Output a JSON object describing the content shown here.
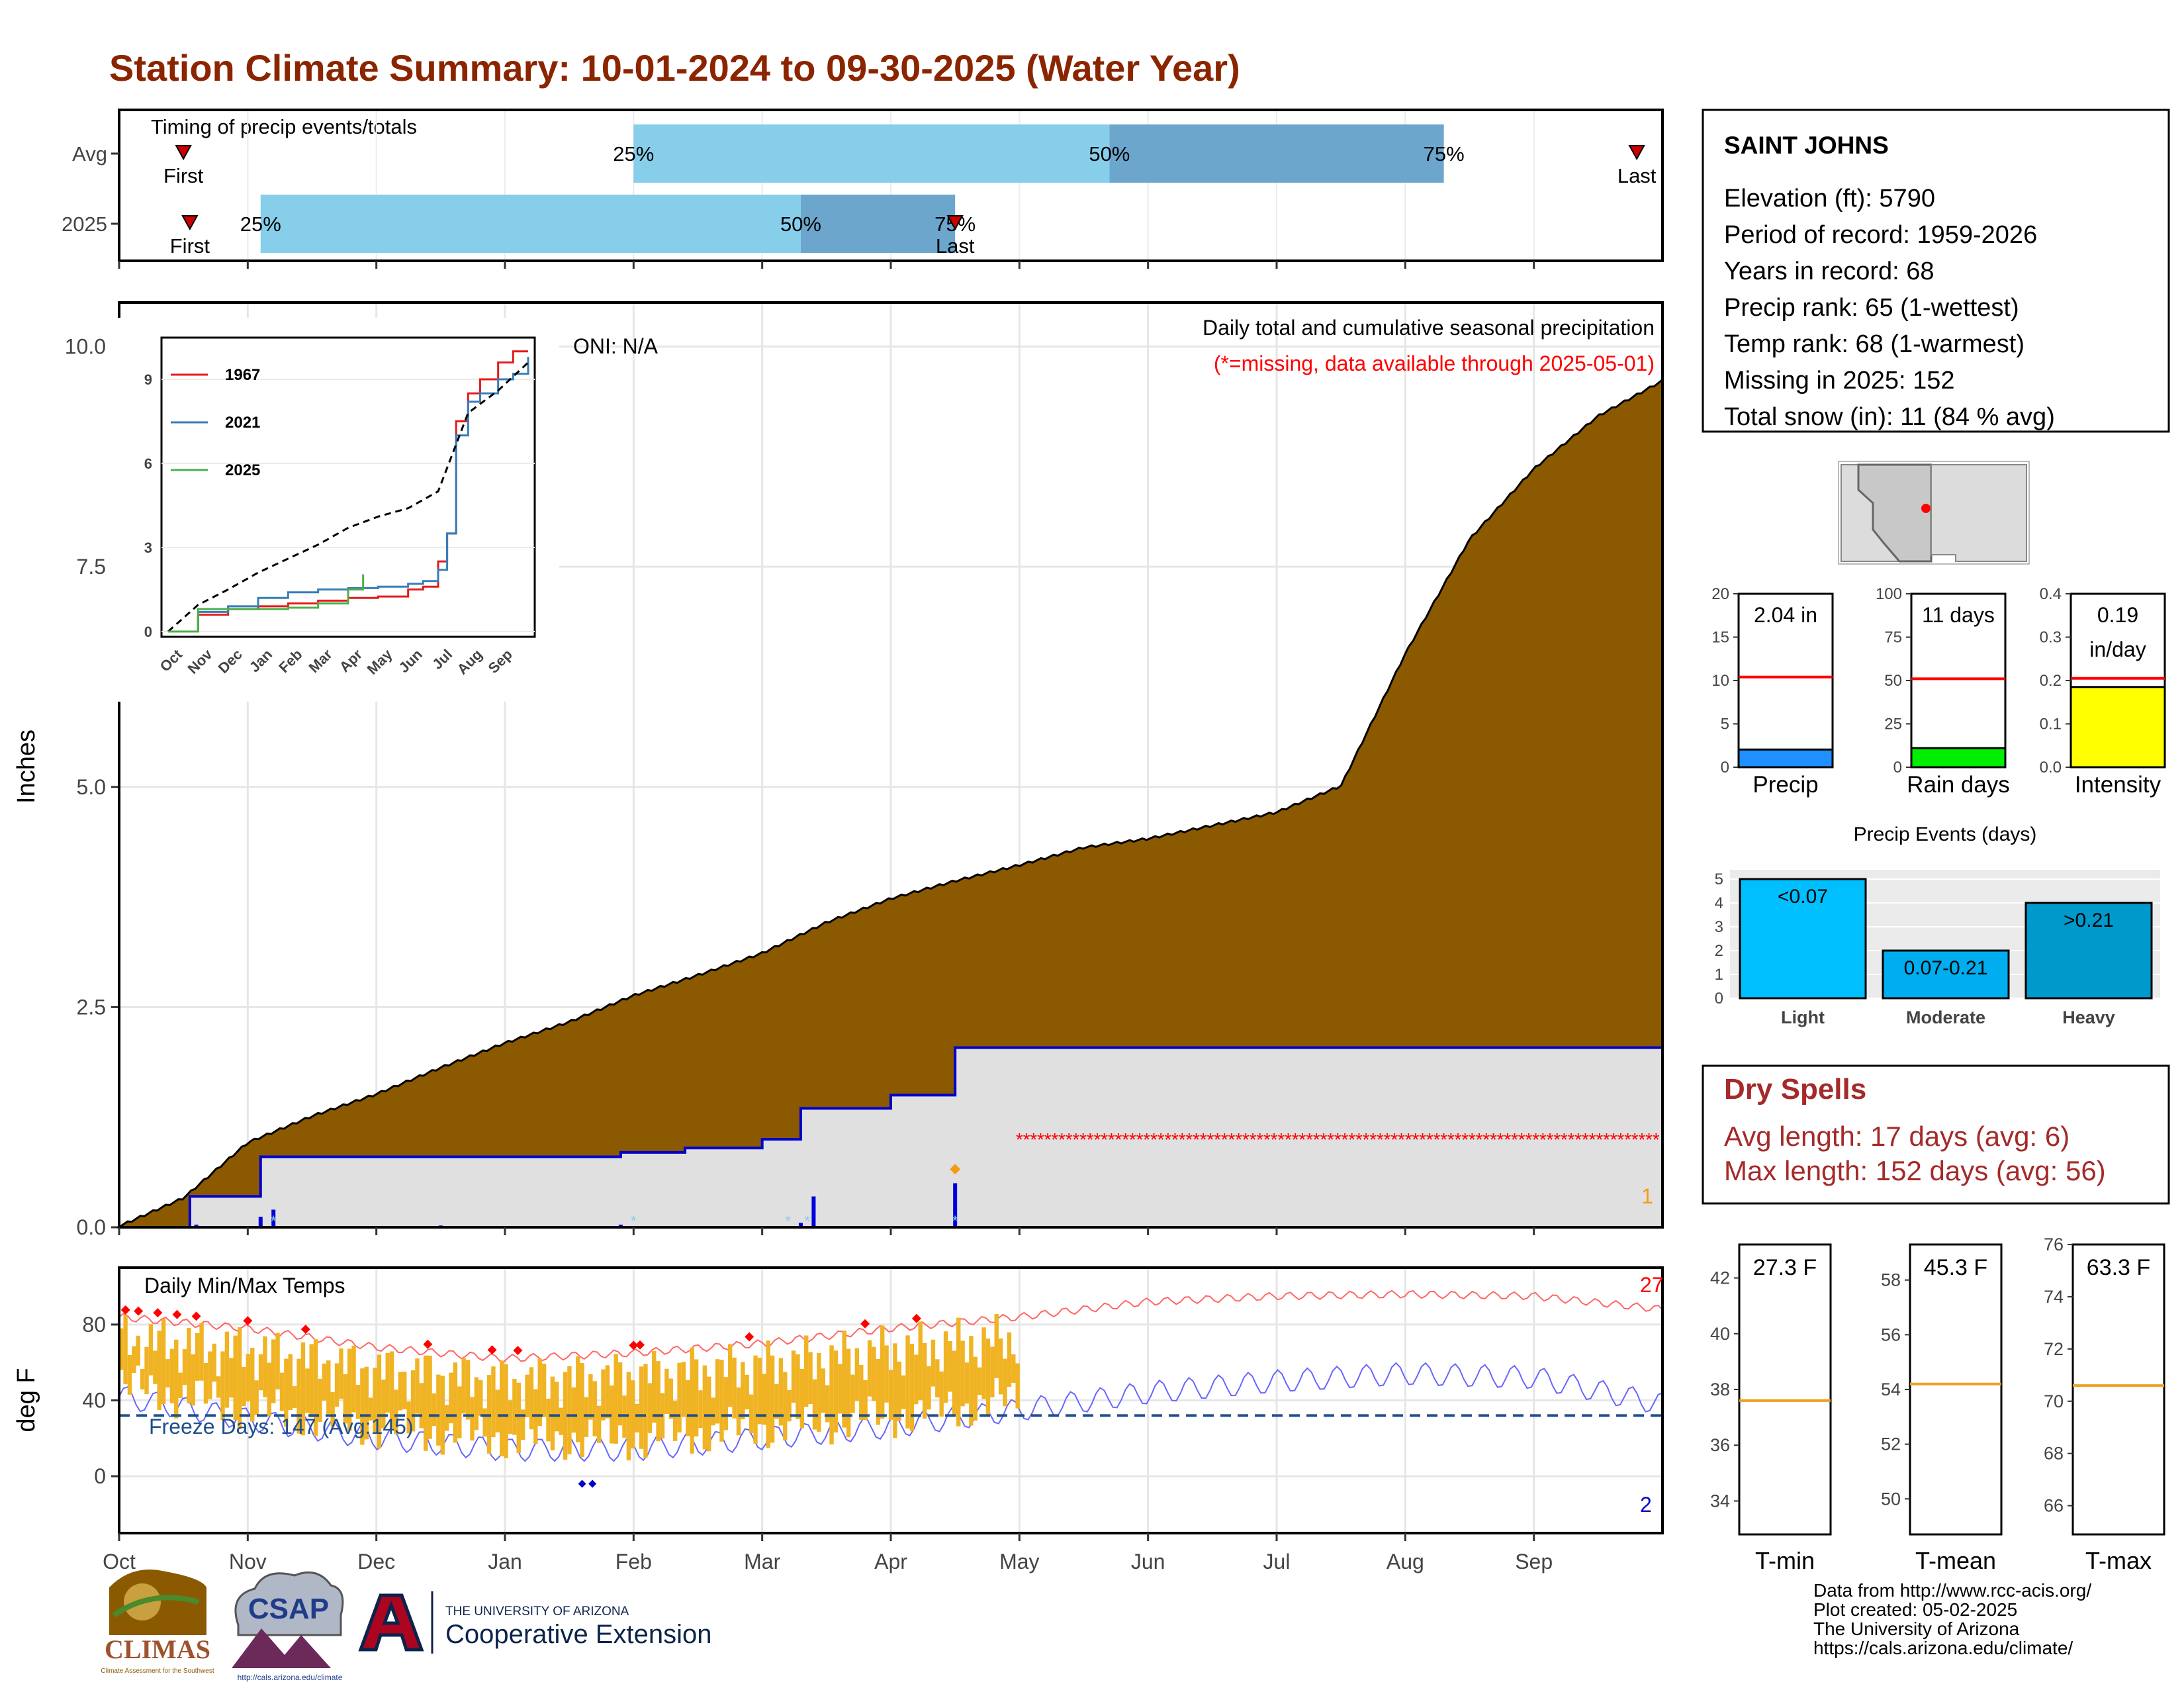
{
  "title": "Station Climate Summary: 10-01-2024 to 09-30-2025 (Water Year)",
  "colors": {
    "title": "#8b2500",
    "cumulative_fill": "#8b5a00",
    "current_area": "#e0e0e0",
    "current_line": "#0000cc",
    "missing": "#ff0000",
    "timing_light": "#87ceeb",
    "timing_dark": "#6ca6cd",
    "temp_bar": "#f0b323",
    "record_high": "#ff0000",
    "record_low": "#0000cc",
    "freeze_line": "#1f4e8c",
    "dry_spells": "#a52a2a",
    "precip_bar": "#1e90ff",
    "rain_days_bar": "#00ee00",
    "intensity_bar": "#ffff00",
    "avg_line": "#ff0000",
    "temp_avg_line": "#f0a020",
    "event_light": "#00bfff",
    "event_moderate": "#00aeef",
    "event_heavy": "#0099cc",
    "inset_1967": "#e41a1c",
    "inset_2021": "#377eb8",
    "inset_2025": "#4daf4a"
  },
  "timing": {
    "label": "Timing of precip events/totals",
    "rows": [
      {
        "label": "Avg",
        "first_month": 0.5,
        "p25": 4.0,
        "p50": 7.7,
        "p75": 10.3,
        "last_month": 11.8,
        "first_label": "First",
        "last_label": "Last",
        "p25_label": "25%",
        "p50_label": "50%",
        "p75_label": "75%"
      },
      {
        "label": "2025",
        "first_month": 0.55,
        "p25": 1.1,
        "p50": 5.3,
        "p75": 6.5,
        "last_month": 6.5,
        "first_label": "First",
        "last_label": "Last",
        "p25_label": "25%",
        "p50_label": "50%",
        "p75_label": "75%"
      }
    ]
  },
  "months": [
    "Oct",
    "Nov",
    "Dec",
    "Jan",
    "Feb",
    "Mar",
    "Apr",
    "May",
    "Jun",
    "Jul",
    "Aug",
    "Sep"
  ],
  "precip_panel": {
    "ylabel": "Inches",
    "yticks": [
      "0.0",
      "2.5",
      "5.0",
      "7.5",
      "10.0"
    ],
    "oni": "ONI: N/A",
    "legend_title": "Daily total and cumulative seasonal precipitation",
    "legend_missing": "(*=missing, data available through 2025-05-01)",
    "corner_count": "1"
  },
  "inset": {
    "series": [
      {
        "name": "1967"
      },
      {
        "name": "2021"
      },
      {
        "name": "2025"
      }
    ],
    "yticks": [
      "0",
      "3",
      "6",
      "9"
    ],
    "months": [
      "Oct",
      "Nov",
      "Dec",
      "Jan",
      "Feb",
      "Mar",
      "Apr",
      "May",
      "Jun",
      "Jul",
      "Aug",
      "Sep"
    ]
  },
  "temp_panel": {
    "ylabel": "deg F",
    "title": "Daily Min/Max Temps",
    "freeze_label": "Freeze Days: 147 (Avg:145)",
    "record_high_count": "27",
    "record_low_count": "2",
    "yticks": [
      "0",
      "40",
      "80"
    ]
  },
  "station": {
    "name": "SAINT JOHNS",
    "lines": [
      "Elevation (ft): 5790",
      "Period of record: 1959-2026",
      "Years in record: 68",
      "Precip rank: 65 (1-wettest)",
      "Temp rank: 68 (1-warmest)",
      "Missing in 2025: 152",
      "Total snow (in): 11 (84 % avg)"
    ]
  },
  "small_charts": [
    {
      "label": "Precip",
      "value_text": "2.04 in",
      "value": 2.04,
      "avg": 10.4,
      "max": 20,
      "yticks": [
        "0",
        "5",
        "10",
        "15",
        "20"
      ]
    },
    {
      "label": "Rain days",
      "value_text": "11 days",
      "value": 11,
      "avg": 51,
      "max": 100,
      "yticks": [
        "0",
        "25",
        "50",
        "75",
        "100"
      ]
    },
    {
      "label": "Intensity",
      "value_text": "0.19 in/day",
      "value_line1": "0.19",
      "value_line2": "in/day",
      "value": 0.185,
      "avg": 0.205,
      "max": 0.4,
      "yticks": [
        "0.0",
        "0.1",
        "0.2",
        "0.3",
        "0.4"
      ]
    }
  ],
  "precip_events": {
    "title": "Precip Events (days)",
    "yticks": [
      "0",
      "1",
      "2",
      "3",
      "4",
      "5"
    ],
    "bars": [
      {
        "category": "Light",
        "label": "<0.07",
        "value": 5
      },
      {
        "category": "Moderate",
        "label": "0.07-0.21",
        "value": 2
      },
      {
        "category": "Heavy",
        "label": ">0.21",
        "value": 4
      }
    ]
  },
  "dry_spells": {
    "title": "Dry Spells",
    "avg_line": "Avg length: 17 days (avg: 6)",
    "max_line": "Max length: 152 days (avg: 56)"
  },
  "temp_charts": [
    {
      "label": "T-min",
      "value_text": "27.3 F",
      "avg": 37.6,
      "min": 32.8,
      "max": 43.2,
      "ticks": [
        34,
        36,
        38,
        40,
        42
      ]
    },
    {
      "label": "T-mean",
      "value_text": "45.3 F",
      "avg": 54.2,
      "min": 48.7,
      "max": 59.3,
      "ticks": [
        50,
        52,
        54,
        56,
        58
      ]
    },
    {
      "label": "T-max",
      "value_text": "63.3 F",
      "avg": 70.6,
      "min": 64.9,
      "max": 76.0,
      "ticks": [
        66,
        68,
        70,
        72,
        74,
        76
      ]
    }
  ],
  "logos": {
    "climas": "CLIMAS",
    "climas_sub": "Climate Assessment for the Southwest",
    "csap": "CSAP",
    "csap_url": "http://cals.arizona.edu/climate",
    "ua_small": "THE UNIVERSITY OF ARIZONA",
    "ua_big": "Cooperative Extension"
  },
  "footer": [
    "Data from http://www.rcc-acis.org/",
    "Plot created: 05-02-2025",
    "The University of Arizona",
    "https://cals.arizona.edu/climate/"
  ],
  "chart_data": [
    {
      "type": "area",
      "title": "Daily total and cumulative seasonal precipitation",
      "ylabel": "Inches",
      "ylim": [
        0,
        10.5
      ],
      "x_unit": "months since Oct 1",
      "series": [
        {
          "name": "Average cumulative",
          "x": [
            0,
            0.5,
            1,
            1.5,
            2,
            2.5,
            3,
            3.5,
            4,
            4.5,
            5,
            5.5,
            6,
            6.5,
            7,
            7.5,
            8,
            8.5,
            9,
            9.5,
            10,
            10.5,
            11,
            11.5,
            12
          ],
          "values": [
            0,
            0.32,
            0.95,
            1.25,
            1.5,
            1.8,
            2.08,
            2.32,
            2.62,
            2.85,
            3.1,
            3.45,
            3.72,
            3.92,
            4.1,
            4.3,
            4.4,
            4.55,
            4.7,
            5.0,
            6.5,
            7.8,
            8.6,
            9.2,
            9.6
          ]
        },
        {
          "name": "2025 cumulative",
          "x": [
            0,
            0.55,
            1.1,
            2.0,
            3.0,
            3.9,
            4.4,
            5.0,
            5.3,
            6.0,
            6.5,
            7.0,
            12
          ],
          "values": [
            0,
            0.35,
            0.8,
            0.8,
            0.8,
            0.85,
            0.9,
            1.0,
            1.35,
            1.5,
            2.04,
            2.04,
            2.04
          ]
        }
      ],
      "missing_from": "2025-05-01",
      "daily_events_month": [
        0.6,
        1.1,
        1.2,
        2.5,
        3.9,
        5.3,
        5.4,
        6.5
      ],
      "daily_events_in": [
        0.03,
        0.12,
        0.2,
        0.02,
        0.03,
        0.05,
        0.35,
        0.5
      ]
    },
    {
      "type": "line",
      "title": "",
      "series": [
        {
          "name": "1967",
          "x": [
            0,
            1,
            2,
            3,
            4,
            5,
            6,
            7,
            8,
            8.5,
            9,
            9.3,
            9.6,
            10,
            10.4,
            11,
            11.5,
            12
          ],
          "values": [
            0,
            0.6,
            0.8,
            0.9,
            1.0,
            1.1,
            1.2,
            1.25,
            1.5,
            1.6,
            2.5,
            3.5,
            7.5,
            8.5,
            9.0,
            9.6,
            10.0,
            10.0
          ]
        },
        {
          "name": "2021",
          "x": [
            0,
            1,
            2,
            3,
            4,
            5,
            6,
            7,
            8,
            8.5,
            9,
            9.3,
            9.6,
            10,
            10.4,
            11,
            11.5,
            12
          ],
          "values": [
            0,
            0.7,
            0.9,
            1.2,
            1.4,
            1.5,
            1.55,
            1.6,
            1.7,
            1.8,
            2.2,
            3.5,
            7.0,
            8.2,
            8.5,
            9.0,
            9.2,
            9.8
          ]
        },
        {
          "name": "Average",
          "x": [
            0,
            1,
            2,
            3,
            4,
            5,
            6,
            7,
            8,
            9,
            10,
            11,
            12
          ],
          "values": [
            0,
            0.95,
            1.5,
            2.1,
            2.6,
            3.1,
            3.7,
            4.1,
            4.4,
            5.0,
            7.8,
            8.6,
            9.6
          ]
        },
        {
          "name": "2025",
          "x": [
            0,
            1,
            2,
            3,
            4,
            5,
            6,
            6.5
          ],
          "values": [
            0,
            0.8,
            0.8,
            0.8,
            0.85,
            1.0,
            1.5,
            2.04
          ]
        }
      ],
      "ylim": [
        0,
        10
      ]
    },
    {
      "type": "bar",
      "title": "Daily Min/Max Temps",
      "ylabel": "deg F",
      "ylim": [
        -30,
        110
      ],
      "x_unit": "months since Oct 1",
      "avg_max": {
        "x": [
          0,
          1,
          2,
          3,
          4,
          5,
          6,
          7,
          8,
          9,
          10,
          11,
          12
        ],
        "values": [
          84,
          78,
          68,
          62,
          65,
          70,
          78,
          84,
          92,
          95,
          96,
          95,
          88
        ]
      },
      "avg_min": {
        "x": [
          0,
          1,
          2,
          3,
          4,
          5,
          6,
          7,
          8,
          9,
          10,
          11,
          12
        ],
        "values": [
          42,
          30,
          20,
          14,
          14,
          20,
          26,
          35,
          44,
          50,
          54,
          52,
          38
        ]
      },
      "observed_until": 7.0,
      "freeze_line": 32
    },
    {
      "type": "bar",
      "title": "Precip Events (days)",
      "categories": [
        "Light",
        "Moderate",
        "Heavy"
      ],
      "values": [
        5,
        2,
        4
      ],
      "ylim": [
        0,
        5
      ]
    }
  ]
}
